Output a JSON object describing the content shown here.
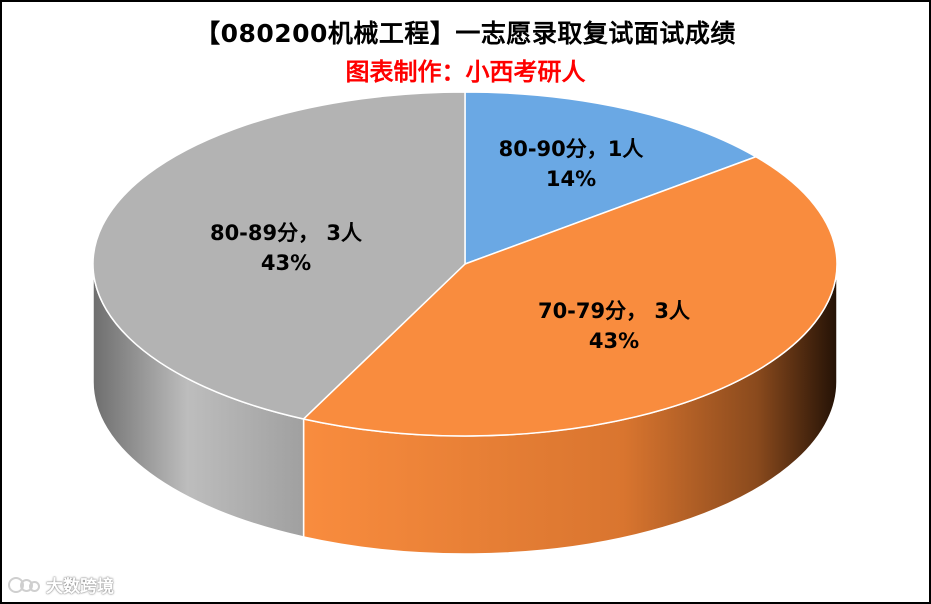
{
  "chart_data": {
    "type": "pie",
    "style": "3d",
    "title": "【080200机械工程】一志愿录取复试面试成绩",
    "subtitle": "图表制作：小西考研人",
    "slices": [
      {
        "category": "80-90分",
        "count_label": "1人",
        "value": 1,
        "percent_label": "14%",
        "color": "#6aa8e4"
      },
      {
        "category": "70-79分",
        "count_label": "3人",
        "value": 3,
        "percent_label": "43%",
        "color": "#f98c3e"
      },
      {
        "category": "80-89分",
        "count_label": "3人",
        "value": 3,
        "percent_label": "43%",
        "color": "#b3b3b3"
      }
    ],
    "label_texts": [
      "80-90分，1人",
      "70-79分， 3人",
      "80-89分， 3人"
    ]
  },
  "watermark": {
    "text": "大数跨境"
  }
}
